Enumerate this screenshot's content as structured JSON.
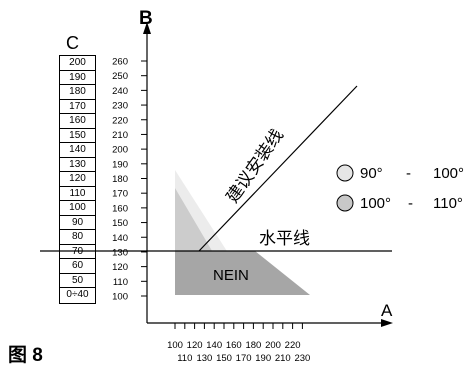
{
  "axes": {
    "b_label": "B",
    "a_label": "A",
    "b_ticks": [
      "260",
      "250",
      "240",
      "230",
      "220",
      "210",
      "200",
      "190",
      "180",
      "170",
      "160",
      "150",
      "140",
      "130",
      "120",
      "110",
      "100"
    ],
    "a_ticks_top": [
      "100",
      "120",
      "140",
      "160",
      "180",
      "200",
      "220"
    ],
    "a_ticks_bottom": [
      "110",
      "130",
      "150",
      "170",
      "190",
      "210",
      "230"
    ]
  },
  "table_c": {
    "title": "C",
    "values": [
      "200",
      "190",
      "180",
      "170",
      "160",
      "150",
      "140",
      "130",
      "120",
      "110",
      "100",
      "90",
      "80",
      "70",
      "60",
      "50",
      "0÷40"
    ]
  },
  "labels": {
    "recommended": "建议安装线",
    "horizontal": "水平线",
    "nein": "NEIN"
  },
  "legend": [
    {
      "from": "90°",
      "dash": "-",
      "to": "100°",
      "color": "#e6e6e6"
    },
    {
      "from": "100°",
      "dash": "-",
      "to": "110°",
      "color": "#c8c8c8"
    }
  ],
  "caption": "图 8",
  "colors": {
    "light_zone": "#ececec",
    "mid_zone": "#cccccc",
    "nein_zone": "#a6a6a6"
  }
}
